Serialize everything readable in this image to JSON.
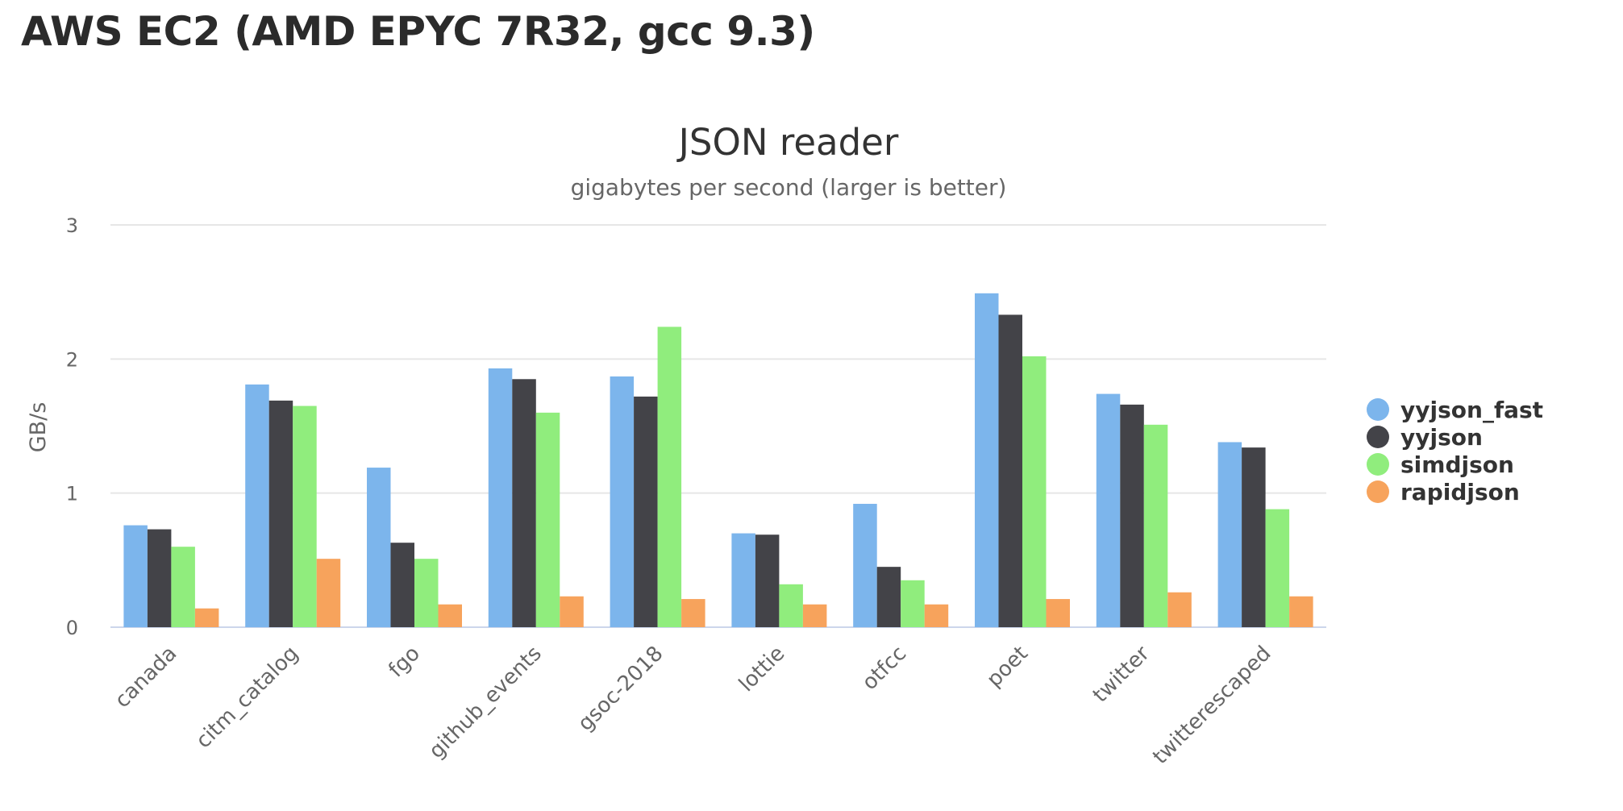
{
  "page": {
    "heading": "AWS EC2 (AMD EPYC 7R32, gcc 9.3)"
  },
  "chart_data": {
    "type": "bar",
    "title": "JSON reader",
    "subtitle": "gigabytes per second (larger is better)",
    "xlabel": "",
    "ylabel": "GB/s",
    "ylim": [
      0,
      3
    ],
    "yticks": [
      "0",
      "1",
      "2",
      "3"
    ],
    "grid": true,
    "legend_position": "right",
    "categories": [
      "canada",
      "citm_catalog",
      "fgo",
      "github_events",
      "gsoc-2018",
      "lottie",
      "otfcc",
      "poet",
      "twitter",
      "twitterescaped"
    ],
    "series": [
      {
        "name": "yyjson_fast",
        "color": "#7cb5ec",
        "values": [
          0.76,
          1.81,
          1.19,
          1.93,
          1.87,
          0.7,
          0.92,
          2.49,
          1.74,
          1.38
        ]
      },
      {
        "name": "yyjson",
        "color": "#434348",
        "values": [
          0.73,
          1.69,
          0.63,
          1.85,
          1.72,
          0.69,
          0.45,
          2.33,
          1.66,
          1.34
        ]
      },
      {
        "name": "simdjson",
        "color": "#90ed7d",
        "values": [
          0.6,
          1.65,
          0.51,
          1.6,
          2.24,
          0.32,
          0.35,
          2.02,
          1.51,
          0.88
        ]
      },
      {
        "name": "rapidjson",
        "color": "#f7a35c",
        "values": [
          0.14,
          0.51,
          0.17,
          0.23,
          0.21,
          0.17,
          0.17,
          0.21,
          0.26,
          0.23
        ]
      }
    ]
  }
}
